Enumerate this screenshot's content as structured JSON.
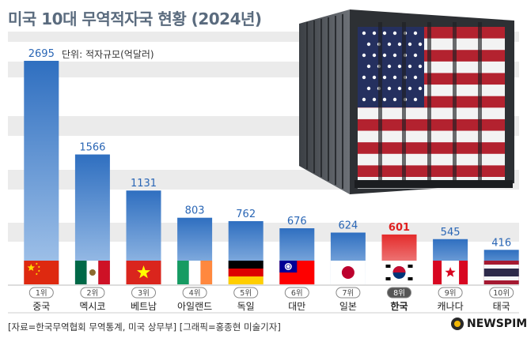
{
  "title": "미국 10대 무역적자국 현황 (2024년)",
  "unit": "단위: 적자규모(억달러)",
  "source": "[자료=한국무역협회 무역통계, 미국 상무부] [그래픽=홍종현 미술기자]",
  "brand": "NEWSPIM",
  "colors": {
    "bar": "#2f6fc0",
    "highlight": "#e02020",
    "value": "#2a66b5",
    "title": "#5a6b7e"
  },
  "chart_data": {
    "type": "bar",
    "title": "미국 10대 무역적자국 현황 (2024년)",
    "ylabel": "적자규모(억달러)",
    "ylim": [
      0,
      2695
    ],
    "items": [
      {
        "rank": "1위",
        "country": "중국",
        "value": 2695,
        "flag": "china-flag"
      },
      {
        "rank": "2위",
        "country": "멕시코",
        "value": 1566,
        "flag": "mexico-flag"
      },
      {
        "rank": "3위",
        "country": "베트남",
        "value": 1131,
        "flag": "vietnam-flag"
      },
      {
        "rank": "4위",
        "country": "아일랜드",
        "value": 803,
        "flag": "ireland-flag"
      },
      {
        "rank": "5위",
        "country": "독일",
        "value": 762,
        "flag": "germany-flag"
      },
      {
        "rank": "6위",
        "country": "대만",
        "value": 676,
        "flag": "taiwan-flag"
      },
      {
        "rank": "7위",
        "country": "일본",
        "value": 624,
        "flag": "japan-flag"
      },
      {
        "rank": "8위",
        "country": "한국",
        "value": 601,
        "flag": "korea-flag",
        "highlight": true
      },
      {
        "rank": "9위",
        "country": "캐나다",
        "value": 545,
        "flag": "canada-flag"
      },
      {
        "rank": "10위",
        "country": "태국",
        "value": 416,
        "flag": "thailand-flag"
      }
    ]
  }
}
